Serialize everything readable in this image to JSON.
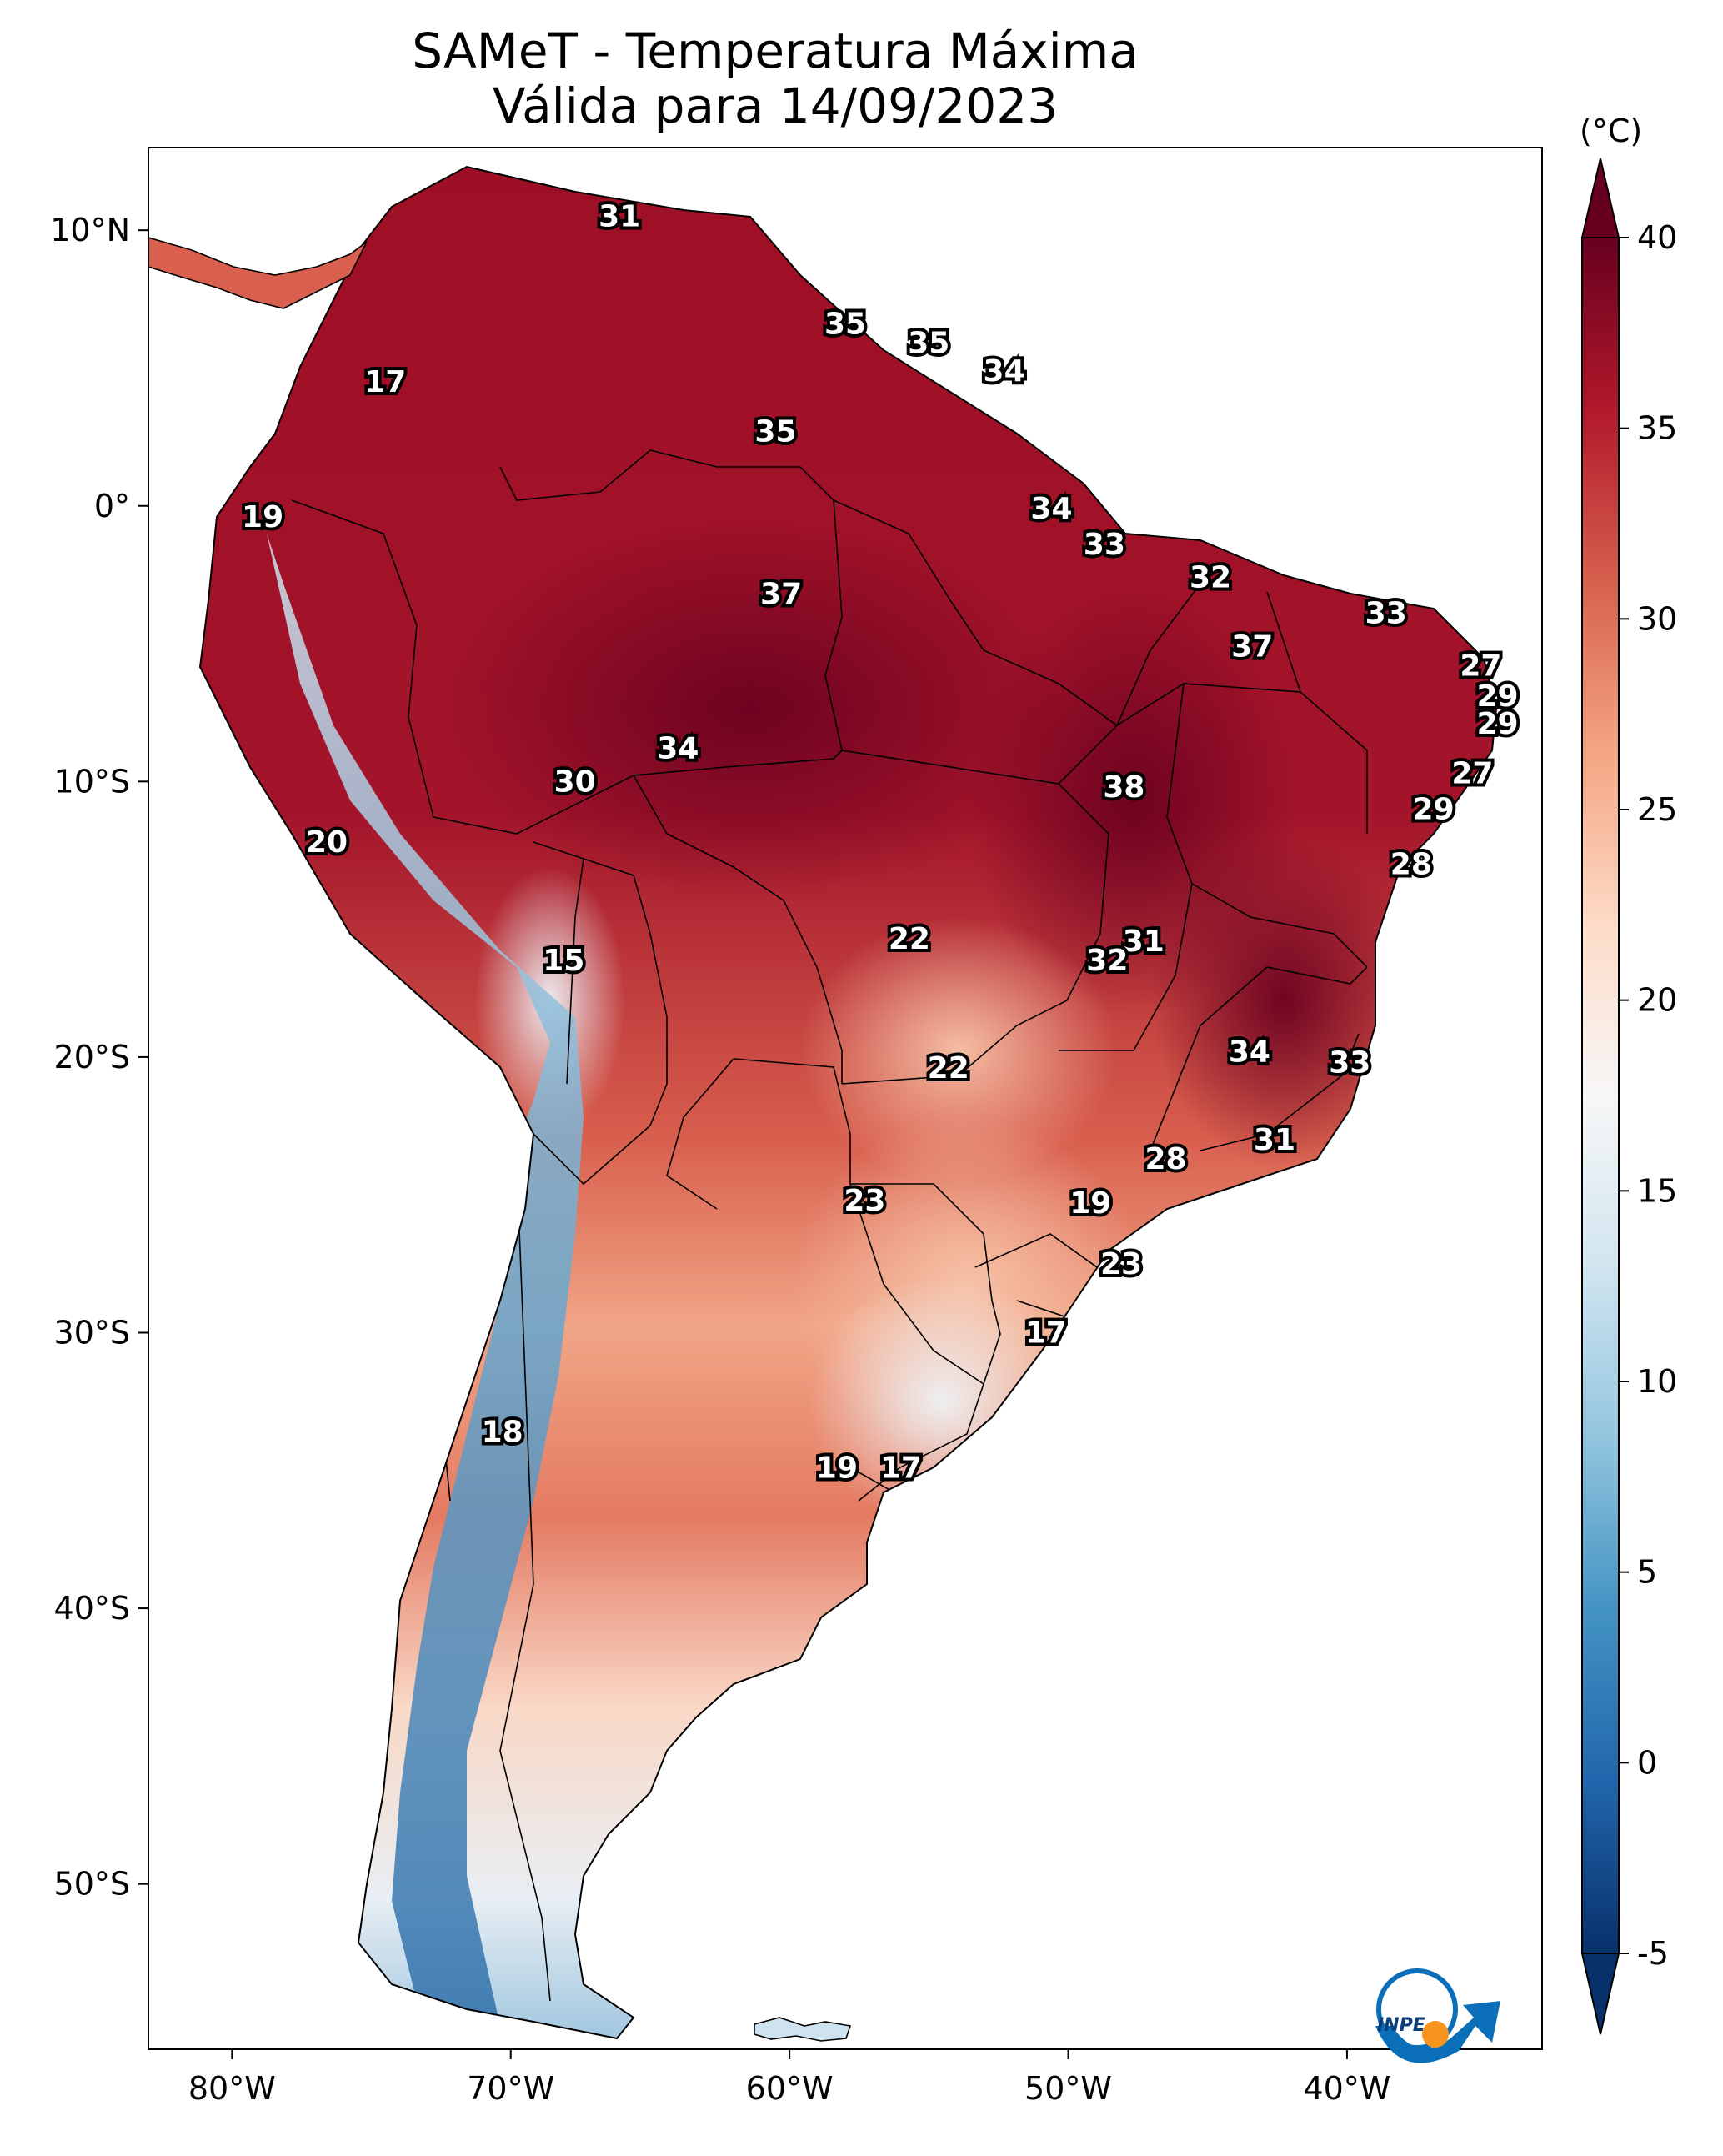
{
  "title": {
    "line1": "SAMeT - Temperatura Máxima",
    "line2": "Válida para 14/09/2023"
  },
  "colorbar": {
    "unit": "(°C)",
    "ticks": [
      "40",
      "35",
      "30",
      "25",
      "20",
      "15",
      "10",
      "5",
      "0",
      "-5"
    ],
    "range": [
      -5,
      40
    ],
    "stops": [
      "#08306b",
      "#2166ac",
      "#4393c3",
      "#92c5de",
      "#d1e5f0",
      "#f7f7f7",
      "#fddbc7",
      "#f4a582",
      "#d6604d",
      "#b2182b",
      "#67001f"
    ]
  },
  "axes": {
    "lon_labels": [
      "80°W",
      "70°W",
      "60°W",
      "50°W",
      "40°W"
    ],
    "lat_labels": [
      "10°N",
      "0°",
      "10°S",
      "20°S",
      "30°S",
      "40°S",
      "50°S"
    ]
  },
  "logo": {
    "text": "INPE",
    "accent_color": "#f7941d",
    "brand_color": "#0a6fb8"
  },
  "chart_data": {
    "type": "map",
    "title": "SAMeT - Temperatura Máxima — Válida para 14/09/2023",
    "variable": "Temperatura Máxima",
    "unit": "°C",
    "valid_date": "14/09/2023",
    "lon_range": [
      -83,
      -33
    ],
    "lat_range": [
      -56,
      13
    ],
    "labels": [
      {
        "value": "31",
        "lon": -66.1,
        "lat": 10.5
      },
      {
        "value": "35",
        "lon": -58.0,
        "lat": 6.6
      },
      {
        "value": "35",
        "lon": -55.0,
        "lat": 5.9
      },
      {
        "value": "34",
        "lon": -52.3,
        "lat": 4.9
      },
      {
        "value": "17",
        "lon": -74.5,
        "lat": 4.5
      },
      {
        "value": "35",
        "lon": -60.5,
        "lat": 2.7
      },
      {
        "value": "19",
        "lon": -78.9,
        "lat": -0.4
      },
      {
        "value": "34",
        "lon": -50.6,
        "lat": -0.1
      },
      {
        "value": "33",
        "lon": -48.7,
        "lat": -1.4
      },
      {
        "value": "32",
        "lon": -44.9,
        "lat": -2.6
      },
      {
        "value": "37",
        "lon": -60.3,
        "lat": -3.2
      },
      {
        "value": "33",
        "lon": -38.6,
        "lat": -3.9
      },
      {
        "value": "37",
        "lon": -43.4,
        "lat": -5.1
      },
      {
        "value": "27",
        "lon": -35.2,
        "lat": -5.8
      },
      {
        "value": "29",
        "lon": -34.6,
        "lat": -6.9
      },
      {
        "value": "29",
        "lon": -34.6,
        "lat": -7.9
      },
      {
        "value": "34",
        "lon": -64.0,
        "lat": -8.8
      },
      {
        "value": "30",
        "lon": -67.7,
        "lat": -10.0
      },
      {
        "value": "27",
        "lon": -35.5,
        "lat": -9.7
      },
      {
        "value": "38",
        "lon": -48.0,
        "lat": -10.2
      },
      {
        "value": "29",
        "lon": -36.9,
        "lat": -11.0
      },
      {
        "value": "20",
        "lon": -76.6,
        "lat": -12.2
      },
      {
        "value": "28",
        "lon": -37.7,
        "lat": -13.0
      },
      {
        "value": "22",
        "lon": -55.7,
        "lat": -15.7
      },
      {
        "value": "31",
        "lon": -47.3,
        "lat": -15.8
      },
      {
        "value": "32",
        "lon": -48.6,
        "lat": -16.5
      },
      {
        "value": "15",
        "lon": -68.1,
        "lat": -16.5
      },
      {
        "value": "34",
        "lon": -43.5,
        "lat": -19.8
      },
      {
        "value": "22",
        "lon": -54.3,
        "lat": -20.4
      },
      {
        "value": "33",
        "lon": -39.9,
        "lat": -20.2
      },
      {
        "value": "31",
        "lon": -42.6,
        "lat": -23.0
      },
      {
        "value": "28",
        "lon": -46.5,
        "lat": -23.7
      },
      {
        "value": "23",
        "lon": -57.3,
        "lat": -25.2
      },
      {
        "value": "19",
        "lon": -49.2,
        "lat": -25.3
      },
      {
        "value": "23",
        "lon": -48.1,
        "lat": -27.5
      },
      {
        "value": "17",
        "lon": -50.8,
        "lat": -30.0
      },
      {
        "value": "18",
        "lon": -70.3,
        "lat": -33.6
      },
      {
        "value": "19",
        "lon": -58.3,
        "lat": -34.9
      },
      {
        "value": "17",
        "lon": -56.0,
        "lat": -34.9
      }
    ]
  }
}
